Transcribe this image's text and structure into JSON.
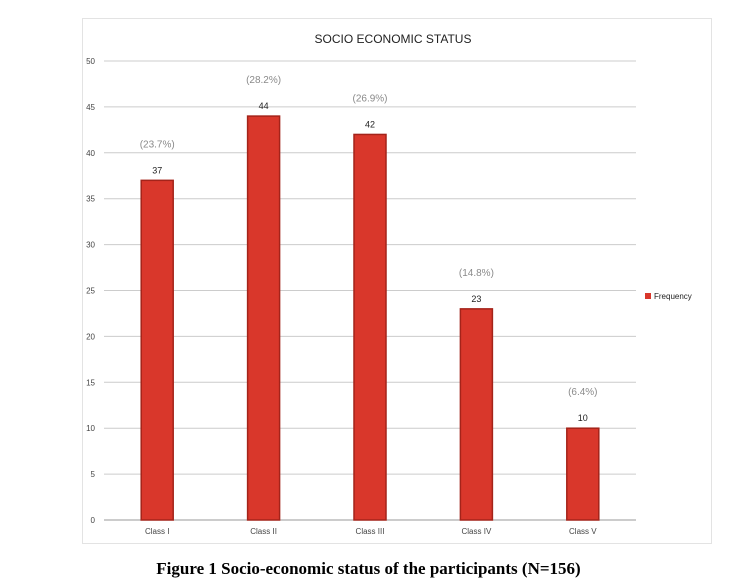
{
  "chart_data": {
    "type": "bar",
    "title": "SOCIO ECONOMIC STATUS",
    "categories": [
      "Class I",
      "Class II",
      "Class III",
      "Class IV",
      "Class V"
    ],
    "series": [
      {
        "name": "Frequency",
        "values": [
          37,
          44,
          42,
          23,
          10
        ],
        "percent_labels": [
          "(23.7%)",
          "(28.2%)",
          "(26.9%)",
          "(14.8%)",
          "(6.4%)"
        ]
      }
    ],
    "ylim": [
      0,
      50
    ],
    "yticks": [
      0,
      5,
      10,
      15,
      20,
      25,
      30,
      35,
      40,
      45,
      50
    ],
    "grid": true,
    "legend": "right",
    "colors": {
      "bar": "#d9372b",
      "bar_edge": "#a4231a",
      "grid": "#cccccc",
      "percent_text": "#8a8a8a"
    }
  },
  "caption": "Figure 1 Socio-economic status of the participants (N=156)"
}
